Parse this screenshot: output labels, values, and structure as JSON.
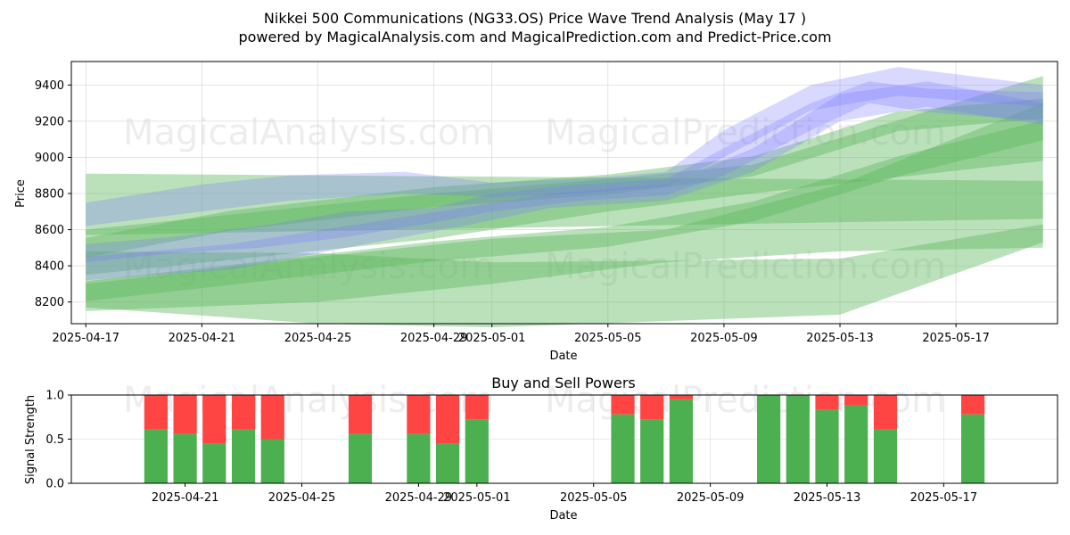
{
  "title_line1": "Nikkei 500 Communications (NG33.OS) Price Wave Trend Analysis (May 17 )",
  "title_line2": "powered by MagicalAnalysis.com and MagicalPrediction.com and Predict-Price.com",
  "watermarks": [
    "MagicalAnalysis.com",
    "MagicalPrediction.com"
  ],
  "colors": {
    "green": "#4caf50",
    "red": "#ff4444",
    "blue": "#7777ff",
    "bandGreen": "#5cb85c"
  },
  "chart_data": [
    {
      "type": "area",
      "xlabel": "Date",
      "ylabel": "Price",
      "xlim": [
        "2025-04-17",
        "2025-05-20"
      ],
      "ylim": [
        8080,
        9530
      ],
      "grid": true,
      "x_ticks": [
        "2025-04-17",
        "2025-04-21",
        "2025-04-25",
        "2025-04-29",
        "2025-05-01",
        "2025-05-05",
        "2025-05-09",
        "2025-05-13",
        "2025-05-17"
      ],
      "y_ticks": [
        8200,
        8400,
        8600,
        8800,
        9000,
        9200,
        9400
      ],
      "green_bands": [
        {
          "x": [
            "2025-04-17",
            "2025-05-20"
          ],
          "upper": [
            8910,
            8870
          ],
          "lower": [
            8570,
            8660
          ]
        },
        {
          "x": [
            "2025-04-17",
            "2025-04-25",
            "2025-05-01",
            "2025-05-08",
            "2025-05-13",
            "2025-05-20"
          ],
          "upper": [
            8480,
            8470,
            8420,
            8430,
            8440,
            8630
          ],
          "lower": [
            8170,
            8080,
            8060,
            8100,
            8130,
            8530
          ]
        },
        {
          "x": [
            "2025-04-17",
            "2025-04-25",
            "2025-05-01",
            "2025-05-07",
            "2025-05-13",
            "2025-05-20"
          ],
          "upper": [
            8300,
            8450,
            8550,
            8600,
            8850,
            9300
          ],
          "lower": [
            8150,
            8200,
            8300,
            8420,
            8480,
            8500
          ]
        },
        {
          "x": [
            "2025-04-17",
            "2025-04-22",
            "2025-04-29",
            "2025-05-05",
            "2025-05-10",
            "2025-05-15",
            "2025-05-20"
          ],
          "upper": [
            8500,
            8650,
            8780,
            8850,
            8950,
            9200,
            9270
          ]
        },
        {
          "x": [
            "2025-04-17",
            "2025-04-22",
            "2025-04-29",
            "2025-05-05",
            "2025-05-10",
            "2025-05-15",
            "2025-05-20"
          ],
          "lower": [
            8260,
            8350,
            8480,
            8560,
            8700,
            8950,
            9150
          ]
        },
        {
          "x": [
            "2025-04-17",
            "2025-04-23",
            "2025-04-29",
            "2025-05-05",
            "2025-05-10",
            "2025-05-20"
          ],
          "upper": [
            8600,
            8700,
            8800,
            8880,
            8960,
            9450
          ],
          "lower": [
            8350,
            8450,
            8550,
            8700,
            8800,
            8980
          ]
        }
      ],
      "blue_bands": [
        {
          "x": [
            "2025-04-17",
            "2025-04-20",
            "2025-04-23",
            "2025-04-26",
            "2025-04-29",
            "2025-05-01",
            "2025-05-04",
            "2025-05-07",
            "2025-05-09",
            "2025-05-12",
            "2025-05-14",
            "2025-05-16",
            "2025-05-20"
          ],
          "upper": [
            8520,
            8560,
            8620,
            8700,
            8720,
            8800,
            8850,
            8880,
            9050,
            9300,
            9420,
            9380,
            9360
          ],
          "lower": [
            8420,
            8470,
            8500,
            8560,
            8640,
            8700,
            8760,
            8790,
            8900,
            9150,
            9300,
            9250,
            9200
          ]
        },
        {
          "x": [
            "2025-04-17",
            "2025-04-21",
            "2025-04-24",
            "2025-04-28",
            "2025-05-01",
            "2025-05-04",
            "2025-05-07",
            "2025-05-09",
            "2025-05-12",
            "2025-05-15",
            "2025-05-20"
          ],
          "upper": [
            8750,
            8850,
            8900,
            8920,
            8860,
            8880,
            8920,
            9150,
            9400,
            9500,
            9400
          ],
          "lower": [
            8620,
            8700,
            8760,
            8800,
            8780,
            8800,
            8840,
            9000,
            9260,
            9340,
            9280
          ]
        },
        {
          "x": [
            "2025-04-17",
            "2025-04-22",
            "2025-04-26",
            "2025-04-30",
            "2025-05-03",
            "2025-05-07",
            "2025-05-10",
            "2025-05-13",
            "2025-05-16",
            "2025-05-20"
          ],
          "upper": [
            8450,
            8520,
            8620,
            8720,
            8800,
            8850,
            9050,
            9350,
            9420,
            9300
          ],
          "lower": [
            8320,
            8380,
            8500,
            8620,
            8720,
            8760,
            8920,
            9200,
            9280,
            9180
          ]
        }
      ]
    },
    {
      "type": "bar",
      "title": "Buy and Sell Powers",
      "xlabel": "Date",
      "ylabel": "Signal Strength",
      "xlim": [
        "2025-04-18",
        "2025-05-20"
      ],
      "ylim": [
        0,
        1
      ],
      "grid": true,
      "x_ticks": [
        "2025-04-21",
        "2025-04-25",
        "2025-04-29",
        "2025-05-01",
        "2025-05-05",
        "2025-05-09",
        "2025-05-13",
        "2025-05-17"
      ],
      "y_ticks": [
        0.0,
        0.5,
        1.0
      ],
      "bars": [
        {
          "date": "2025-04-20",
          "buy": 0.61
        },
        {
          "date": "2025-04-21",
          "buy": 0.56
        },
        {
          "date": "2025-04-22",
          "buy": 0.45
        },
        {
          "date": "2025-04-23",
          "buy": 0.61
        },
        {
          "date": "2025-04-24",
          "buy": 0.5
        },
        {
          "date": "2025-04-27",
          "buy": 0.56
        },
        {
          "date": "2025-04-29",
          "buy": 0.56
        },
        {
          "date": "2025-04-30",
          "buy": 0.45
        },
        {
          "date": "2025-05-01",
          "buy": 0.72
        },
        {
          "date": "2025-05-06",
          "buy": 0.78
        },
        {
          "date": "2025-05-07",
          "buy": 0.72
        },
        {
          "date": "2025-05-08",
          "buy": 0.95
        },
        {
          "date": "2025-05-11",
          "buy": 1.0
        },
        {
          "date": "2025-05-12",
          "buy": 1.0
        },
        {
          "date": "2025-05-13",
          "buy": 0.83
        },
        {
          "date": "2025-05-14",
          "buy": 0.88
        },
        {
          "date": "2025-05-15",
          "buy": 0.61
        },
        {
          "date": "2025-05-18",
          "buy": 0.78
        }
      ]
    }
  ]
}
